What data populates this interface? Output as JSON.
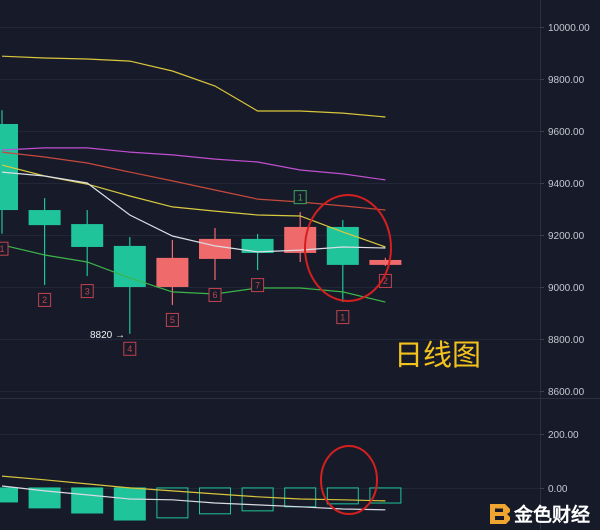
{
  "chart_data": [
    {
      "type": "candlestick",
      "y_ticks": [
        "10000.00",
        "9800.00",
        "9600.00",
        "9400.00",
        "9200.00",
        "9000.00",
        "8800.00",
        "8600.00"
      ],
      "ylim": [
        8573,
        10104
      ],
      "grid": true,
      "up_color": "#ef6a6b",
      "down_color": "#1fc49b",
      "candles": [
        {
          "open": 9627,
          "high": 9680,
          "low": 9205,
          "close": 9296,
          "td": {
            "label": "1",
            "above": false,
            "color": "#c2414f"
          }
        },
        {
          "open": 9296,
          "high": 9342,
          "low": 9008,
          "close": 9238,
          "td": {
            "label": "2",
            "above": false,
            "color": "#c2414f"
          }
        },
        {
          "open": 9242,
          "high": 9296,
          "low": 9042,
          "close": 9154,
          "td": {
            "label": "3",
            "above": false,
            "color": "#c2414f"
          }
        },
        {
          "open": 9158,
          "high": 9192,
          "low": 8820,
          "close": 9000,
          "td": {
            "label": "4",
            "above": false,
            "color": "#c2414f"
          }
        },
        {
          "open": 9000,
          "high": 9181,
          "low": 8931,
          "close": 9112,
          "td": {
            "label": "5",
            "above": false,
            "color": "#c2414f"
          }
        },
        {
          "open": 9108,
          "high": 9227,
          "low": 9027,
          "close": 9185,
          "td": {
            "label": "6",
            "above": false,
            "color": "#c2414f"
          }
        },
        {
          "open": 9185,
          "high": 9204,
          "low": 9065,
          "close": 9131,
          "td": {
            "label": "7",
            "above": false,
            "color": "#c2414f"
          }
        },
        {
          "open": 9131,
          "high": 9288,
          "low": 9096,
          "close": 9231,
          "td": {
            "label": "1",
            "above": true,
            "color": "#3fa45f"
          }
        },
        {
          "open": 9231,
          "high": 9258,
          "low": 8942,
          "close": 9085,
          "td": {
            "label": "1",
            "above": false,
            "color": "#c2414f"
          }
        },
        {
          "open": 9085,
          "high": 9112,
          "low": 9081,
          "close": 9104,
          "td": {
            "label": "2",
            "above": false,
            "color": "#c2414f"
          }
        }
      ],
      "moving_averages": [
        {
          "color": "#d8c63b",
          "values": [
            9888,
            9881,
            9877,
            9869,
            9831,
            9773,
            9677,
            9677,
            9669,
            9654
          ]
        },
        {
          "color": "#c04fd0",
          "values": [
            9527,
            9535,
            9535,
            9519,
            9508,
            9492,
            9481,
            9450,
            9435,
            9412
          ]
        },
        {
          "color": "#c7483c",
          "values": [
            9519,
            9500,
            9477,
            9442,
            9408,
            9373,
            9338,
            9327,
            9312,
            9296
          ]
        },
        {
          "color": "#d8c93f",
          "values": [
            9469,
            9427,
            9396,
            9350,
            9308,
            9292,
            9277,
            9273,
            9212,
            9154
          ]
        },
        {
          "color": "#dcdee6",
          "values": [
            9442,
            9427,
            9400,
            9277,
            9196,
            9158,
            9135,
            9142,
            9154,
            9150
          ]
        },
        {
          "color": "#3db34a",
          "values": [
            9162,
            9123,
            9096,
            9035,
            8981,
            8973,
            8996,
            8996,
            8981,
            8942
          ]
        }
      ]
    },
    {
      "type": "bar",
      "y_ticks": [
        "200.00",
        "0.00"
      ],
      "ylim": [
        -156,
        326
      ],
      "grid": true,
      "bar_color": "#1fc49b",
      "values": [
        -52,
        -74,
        -93,
        -119,
        -111,
        -96,
        -85,
        -70,
        -59,
        -56
      ],
      "hollow": [
        false,
        false,
        false,
        false,
        true,
        true,
        true,
        true,
        true,
        true
      ],
      "lines": [
        {
          "color": "#d6c43d",
          "values": [
            44,
            30,
            15,
            0,
            -11,
            -22,
            -33,
            -41,
            -44,
            -48
          ]
        },
        {
          "color": "#d9dbe3",
          "values": [
            7,
            -11,
            -26,
            -41,
            -44,
            -56,
            -63,
            -70,
            -78,
            -81
          ]
        }
      ]
    }
  ],
  "annotations": {
    "low_price_label": "8820 →",
    "chart_caption": "日线图",
    "caption_color": "#f3c21c",
    "highlight_color": "#d51f1f"
  },
  "watermark": {
    "text": "金色财经",
    "logo_color": "#f0a530"
  }
}
